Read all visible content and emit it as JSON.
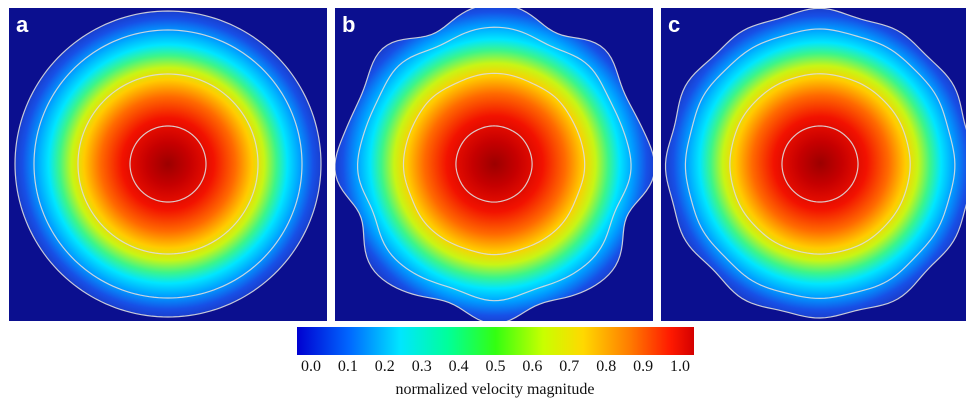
{
  "chart_data": {
    "type": "heatmap",
    "panels": [
      {
        "label": "a",
        "shape": "circle"
      },
      {
        "label": "b",
        "shape": "octagonal-irregular"
      },
      {
        "label": "c",
        "shape": "polygonal"
      }
    ],
    "colorbar": {
      "label": "normalized velocity magnitude",
      "ticks": [
        "0.0",
        "0.1",
        "0.2",
        "0.3",
        "0.4",
        "0.5",
        "0.6",
        "0.7",
        "0.8",
        "0.9",
        "1.0"
      ],
      "range": [
        0.0,
        1.0
      ],
      "colormap": "jet"
    },
    "contour_levels": [
      0.2,
      0.5,
      0.8,
      1.0
    ],
    "colors": {
      "background": "#0b0f8f",
      "contour": "#dddddd"
    }
  }
}
